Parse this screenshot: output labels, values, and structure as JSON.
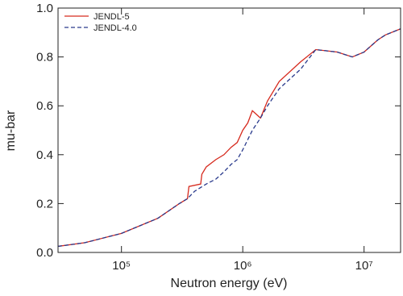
{
  "chart_data": {
    "type": "line",
    "x_label": "Neutron energy (eV)",
    "y_label": "mu-bar",
    "xlim": [
      30000,
      20000000
    ],
    "xscale": "log",
    "xticks": [
      {
        "value": 100000,
        "label": "10⁵"
      },
      {
        "value": 1000000,
        "label": "10⁶"
      },
      {
        "value": 10000000,
        "label": "10⁷"
      }
    ],
    "ylim": [
      0,
      1
    ],
    "yticks": [
      {
        "value": 0,
        "label": "0.0"
      },
      0.2,
      0.4,
      0.6,
      0.8,
      {
        "value": 1,
        "label": "1.0"
      }
    ],
    "legend": "top-left",
    "series": [
      {
        "name": "JENDL-5",
        "color": "#d62a1e",
        "dash": false,
        "x": [
          30000,
          50000,
          100000,
          200000,
          300000,
          350000,
          360000,
          450000,
          460000,
          500000,
          600000,
          700000,
          800000,
          900000,
          1000000,
          1100000,
          1200000,
          1400000,
          1600000,
          2000000,
          3000000,
          4000000,
          6000000,
          8000000,
          10000000,
          13000000,
          15000000,
          20000000
        ],
        "values": [
          0.025,
          0.04,
          0.078,
          0.14,
          0.2,
          0.22,
          0.27,
          0.28,
          0.32,
          0.35,
          0.38,
          0.4,
          0.43,
          0.45,
          0.5,
          0.53,
          0.58,
          0.55,
          0.62,
          0.7,
          0.78,
          0.83,
          0.82,
          0.8,
          0.82,
          0.87,
          0.89,
          0.915
        ]
      },
      {
        "name": "JENDL-4.0",
        "color": "#2a3a8c",
        "dash": true,
        "x": [
          30000,
          50000,
          100000,
          200000,
          300000,
          350000,
          400000,
          500000,
          600000,
          700000,
          800000,
          900000,
          1000000,
          1200000,
          1400000,
          1600000,
          2000000,
          3000000,
          4000000,
          6000000,
          8000000,
          10000000,
          13000000,
          15000000,
          20000000
        ],
        "values": [
          0.025,
          0.04,
          0.078,
          0.14,
          0.2,
          0.22,
          0.25,
          0.28,
          0.3,
          0.33,
          0.36,
          0.38,
          0.42,
          0.5,
          0.55,
          0.6,
          0.67,
          0.75,
          0.83,
          0.82,
          0.8,
          0.82,
          0.87,
          0.89,
          0.915
        ]
      }
    ]
  }
}
